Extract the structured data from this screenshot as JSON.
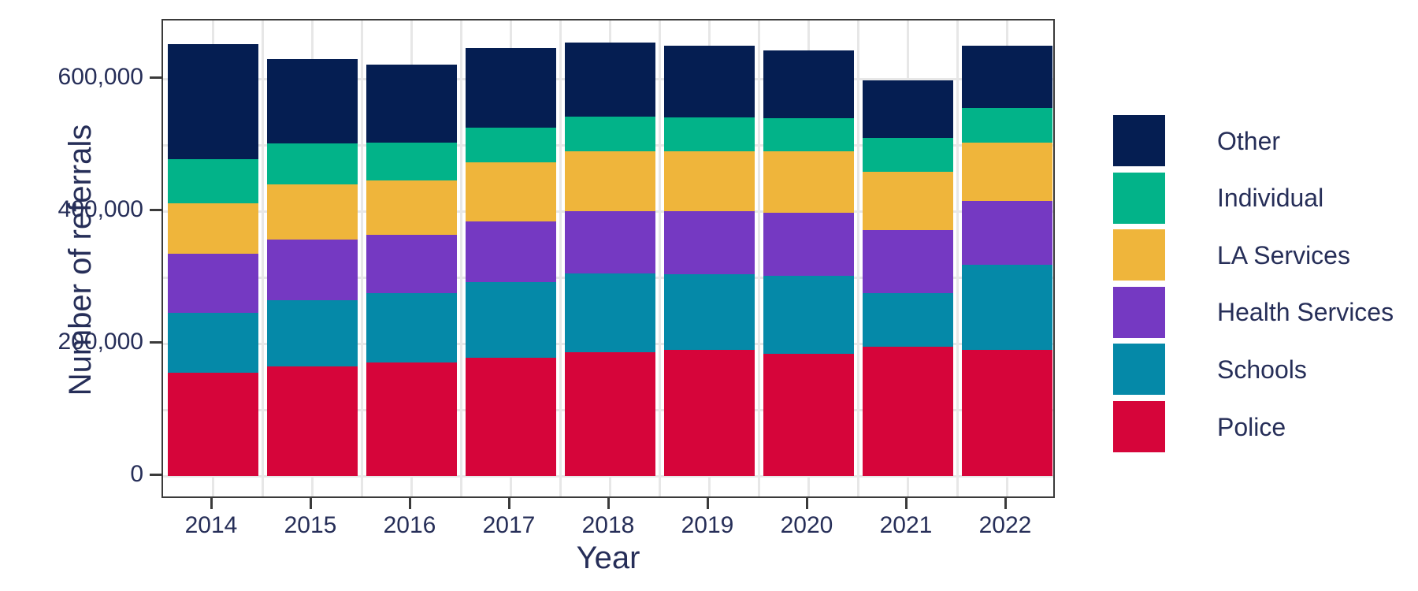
{
  "chart_data": {
    "type": "bar",
    "stacked": true,
    "title": "",
    "xlabel": "Year",
    "ylabel": "Number of referrals",
    "categories": [
      "2014",
      "2015",
      "2016",
      "2017",
      "2018",
      "2019",
      "2020",
      "2021",
      "2022"
    ],
    "series": [
      {
        "name": "Police",
        "color": "#d6053a",
        "values": [
          156000,
          165000,
          172000,
          178000,
          187000,
          190000,
          184000,
          195000,
          191000
        ]
      },
      {
        "name": "Schools",
        "color": "#0589a8",
        "values": [
          90000,
          100000,
          104000,
          115000,
          119000,
          115000,
          118000,
          81000,
          128000
        ]
      },
      {
        "name": "Health Services",
        "color": "#7539c2",
        "values": [
          90000,
          92000,
          88000,
          91000,
          94000,
          95000,
          96000,
          96000,
          97000
        ]
      },
      {
        "name": "LA Services",
        "color": "#efb53b",
        "values": [
          76000,
          83000,
          83000,
          90000,
          91000,
          91000,
          92000,
          88000,
          88000
        ]
      },
      {
        "name": "Individual",
        "color": "#02b389",
        "values": [
          67000,
          62000,
          57000,
          52000,
          52000,
          51000,
          51000,
          51000,
          52000
        ]
      },
      {
        "name": "Other",
        "color": "#051e52",
        "values": [
          173000,
          128000,
          117000,
          120000,
          112000,
          108000,
          102000,
          87000,
          94000
        ]
      }
    ],
    "legend": {
      "position": "right",
      "order": [
        "Other",
        "Individual",
        "LA Services",
        "Health Services",
        "Schools",
        "Police"
      ]
    },
    "y_axis": {
      "ticks": [
        0,
        200000,
        400000,
        600000
      ],
      "tick_labels": [
        "0",
        "200,000",
        "400,000",
        "600,000"
      ],
      "minor_grid_step": 100000,
      "range": [
        0,
        660000
      ]
    },
    "grid": true,
    "colors": {
      "text": "#262e58",
      "axis": "#3a3a3a",
      "gridline": "#e7e7e7",
      "background": "#ffffff"
    }
  }
}
